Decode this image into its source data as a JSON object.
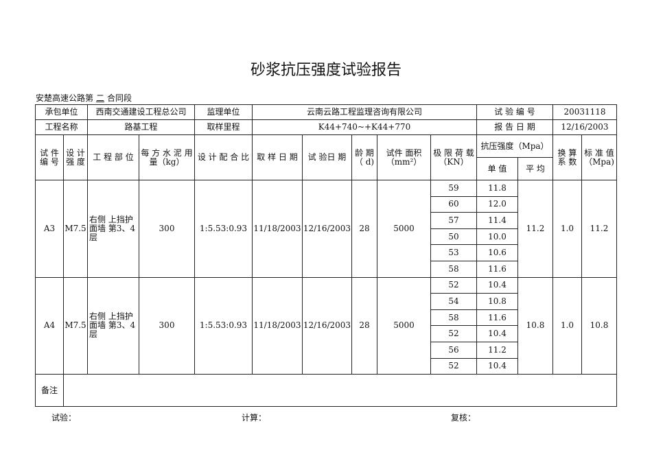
{
  "title": "砂浆抗压强度试验报告",
  "subtitle": {
    "prefix": "安楚高速公路第",
    "section": "二",
    "suffix": "合同段"
  },
  "info": {
    "contractor_label": "承包单位",
    "contractor": "西南交通建设工程总公司",
    "supervisor_label": "监理单位",
    "supervisor": "云南云路工程监理咨询有限公司",
    "test_no_label": "试 验 编 号",
    "test_no": "20031118",
    "project_label": "工程名称",
    "project": "路基工程",
    "mileage_label": "取样里程",
    "mileage": "K44+740~+K44+770",
    "report_date_label": "报 告 日 期",
    "report_date": "12/16/2003"
  },
  "headers": {
    "specimen_no": "试 件 编 号",
    "design_strength": "设 计 强 度",
    "part": "工 程 部 位",
    "cement": "每 方 水 泥 用 量（kg）",
    "mix": "设 计 配 合 比",
    "sample_date": "取 样 日 期",
    "test_date": "试 验日 期",
    "age": "龄 期（ d)",
    "area": "试件 面积（mm²）",
    "load": "极 限 荷 载（KN）",
    "strength": "抗压强度（Mpa）",
    "single": "单 值",
    "avg": "平 均",
    "factor": "换 算 系 数",
    "std": "标 准 值（Mpa)"
  },
  "rows": [
    {
      "no": "A3",
      "grade": "M7.5",
      "part": "右侧 上挡护面墙 第3、4层",
      "cement": "300",
      "mix": "1:5.53:0.93",
      "sample_date": "11/18/2003",
      "test_date": "12/16/2003",
      "age": "28",
      "area": "5000",
      "loads": [
        "59",
        "60",
        "57",
        "50",
        "53",
        "58"
      ],
      "singles": [
        "11.8",
        "12.0",
        "11.4",
        "10.0",
        "10.6",
        "11.6"
      ],
      "avg": "11.2",
      "factor": "1.0",
      "std": "11.2"
    },
    {
      "no": "A4",
      "grade": "M7.5",
      "part": "右侧 上挡护面墙 第3、4层",
      "cement": "300",
      "mix": "1:5.53:0.93",
      "sample_date": "11/18/2003",
      "test_date": "12/16/2003",
      "age": "28",
      "area": "5000",
      "loads": [
        "52",
        "54",
        "58",
        "52",
        "56",
        "52"
      ],
      "singles": [
        "10.4",
        "10.8",
        "11.6",
        "10.4",
        "11.2",
        "10.4"
      ],
      "avg": "10.8",
      "factor": "1.0",
      "std": "10.8"
    }
  ],
  "remarks_label": "备注",
  "footer": {
    "test": "试验：",
    "calc": "计算：",
    "review": "复核："
  }
}
